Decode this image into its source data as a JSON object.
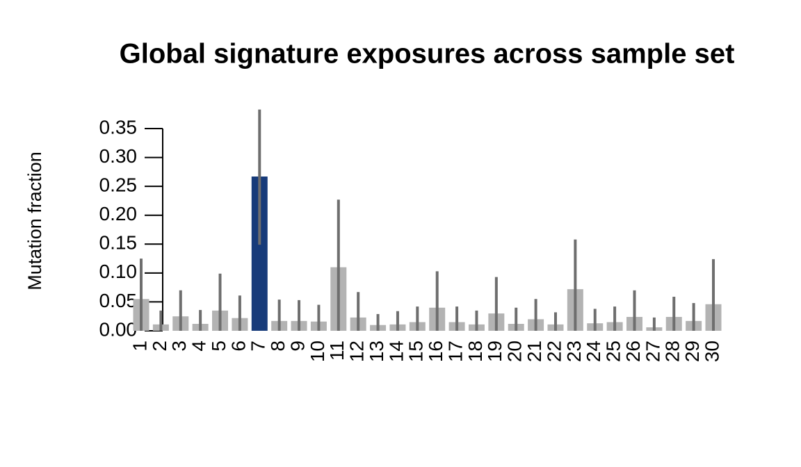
{
  "chart_data": {
    "type": "bar",
    "title": "Global signature exposures across sample set",
    "y_label": "Mutation fraction",
    "categories": [
      "1",
      "2",
      "3",
      "4",
      "5",
      "6",
      "7",
      "8",
      "9",
      "10",
      "11",
      "12",
      "13",
      "14",
      "15",
      "16",
      "17",
      "18",
      "19",
      "20",
      "21",
      "22",
      "23",
      "24",
      "25",
      "26",
      "27",
      "28",
      "29",
      "30"
    ],
    "values": [
      0.055,
      0.011,
      0.025,
      0.012,
      0.035,
      0.022,
      0.267,
      0.017,
      0.017,
      0.016,
      0.11,
      0.023,
      0.01,
      0.011,
      0.015,
      0.04,
      0.015,
      0.011,
      0.03,
      0.012,
      0.02,
      0.011,
      0.072,
      0.013,
      0.015,
      0.024,
      0.006,
      0.024,
      0.017,
      0.046
    ],
    "lower": [
      0,
      0,
      0,
      0,
      0,
      0,
      0.149,
      0,
      0,
      0,
      0,
      0,
      0,
      0,
      0,
      0,
      0,
      0,
      0,
      0,
      0,
      0,
      0,
      0,
      0,
      0,
      0,
      0,
      0,
      0
    ],
    "upper": [
      0.125,
      0.035,
      0.07,
      0.036,
      0.099,
      0.061,
      0.383,
      0.054,
      0.053,
      0.045,
      0.227,
      0.067,
      0.029,
      0.034,
      0.042,
      0.103,
      0.042,
      0.035,
      0.093,
      0.04,
      0.055,
      0.032,
      0.158,
      0.038,
      0.042,
      0.07,
      0.023,
      0.059,
      0.048,
      0.124
    ],
    "colors": [
      "#b3b3b3",
      "#b3b3b3",
      "#b3b3b3",
      "#b3b3b3",
      "#b3b3b3",
      "#b3b3b3",
      "#173b7a",
      "#b3b3b3",
      "#b3b3b3",
      "#b3b3b3",
      "#b3b3b3",
      "#b3b3b3",
      "#b3b3b3",
      "#b3b3b3",
      "#b3b3b3",
      "#b3b3b3",
      "#b3b3b3",
      "#b3b3b3",
      "#b3b3b3",
      "#b3b3b3",
      "#b3b3b3",
      "#b3b3b3",
      "#b3b3b3",
      "#b3b3b3",
      "#b3b3b3",
      "#b3b3b3",
      "#b3b3b3",
      "#b3b3b3",
      "#b3b3b3",
      "#b3b3b3"
    ],
    "error_color": "#6e6e6e",
    "ylim": [
      0,
      0.35
    ],
    "yticks": [
      {
        "value": 0,
        "label": "0.00"
      },
      {
        "value": 0.05,
        "label": "0.05"
      },
      {
        "value": 0.1,
        "label": "0.10"
      },
      {
        "value": 0.15,
        "label": "0.15"
      },
      {
        "value": 0.2,
        "label": "0.20"
      },
      {
        "value": 0.25,
        "label": "0.25"
      },
      {
        "value": 0.3,
        "label": "0.30"
      },
      {
        "value": 0.35,
        "label": "0.35"
      }
    ],
    "grid": false
  }
}
